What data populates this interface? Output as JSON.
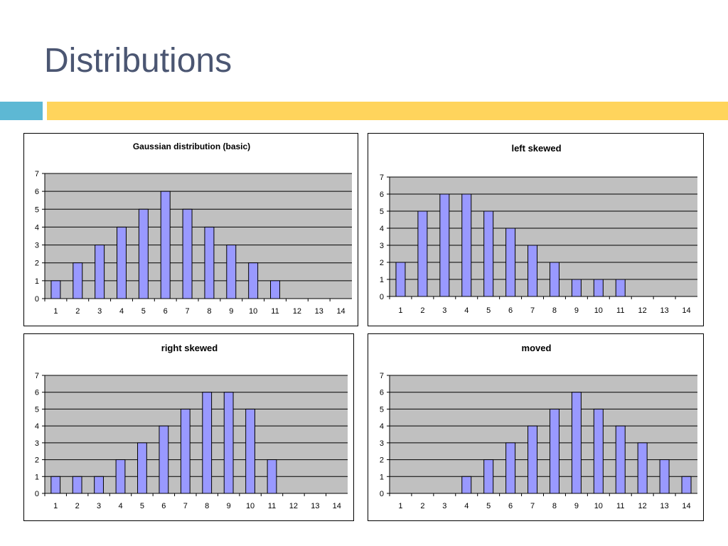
{
  "slide": {
    "title": "Distributions",
    "accent_colors": {
      "left_bar": "#5db8d4",
      "right_bar": "#ffd45c"
    }
  },
  "chart_style": {
    "plot_bg": "#c0c0c0",
    "bar_fill": "#9999ff",
    "bar_stroke": "#000000",
    "gridline_color": "#000000",
    "grid": true,
    "legend": "none"
  },
  "chart_data": [
    {
      "type": "bar",
      "title": "Gaussian distribution (basic)",
      "categories": [
        "1",
        "2",
        "3",
        "4",
        "5",
        "6",
        "7",
        "8",
        "9",
        "10",
        "11",
        "12",
        "13",
        "14"
      ],
      "values": [
        1,
        2,
        3,
        4,
        5,
        6,
        5,
        4,
        3,
        2,
        1,
        0,
        0,
        0
      ],
      "xlabel": "",
      "ylabel": "",
      "ylim": [
        0,
        7
      ],
      "yticks": [
        "0",
        "1",
        "2",
        "3",
        "4",
        "5",
        "6",
        "7"
      ]
    },
    {
      "type": "bar",
      "title": "left skewed",
      "categories": [
        "1",
        "2",
        "3",
        "4",
        "5",
        "6",
        "7",
        "8",
        "9",
        "10",
        "11",
        "12",
        "13",
        "14"
      ],
      "values": [
        2,
        5,
        6,
        6,
        5,
        4,
        3,
        2,
        1,
        1,
        1,
        0,
        0,
        0
      ],
      "xlabel": "",
      "ylabel": "",
      "ylim": [
        0,
        7
      ],
      "yticks": [
        "0",
        "1",
        "2",
        "3",
        "4",
        "5",
        "6",
        "7"
      ]
    },
    {
      "type": "bar",
      "title": "right skewed",
      "categories": [
        "1",
        "2",
        "3",
        "4",
        "5",
        "6",
        "7",
        "8",
        "9",
        "10",
        "11",
        "12",
        "13",
        "14"
      ],
      "values": [
        1,
        1,
        1,
        2,
        3,
        4,
        5,
        6,
        6,
        5,
        2,
        0,
        0,
        0
      ],
      "xlabel": "",
      "ylabel": "",
      "ylim": [
        0,
        7
      ],
      "yticks": [
        "0",
        "1",
        "2",
        "3",
        "4",
        "5",
        "6",
        "7"
      ]
    },
    {
      "type": "bar",
      "title": "moved",
      "categories": [
        "1",
        "2",
        "3",
        "4",
        "5",
        "6",
        "7",
        "8",
        "9",
        "10",
        "11",
        "12",
        "13",
        "14"
      ],
      "values": [
        0,
        0,
        0,
        1,
        2,
        3,
        4,
        5,
        6,
        5,
        4,
        3,
        2,
        1
      ],
      "xlabel": "",
      "ylabel": "",
      "ylim": [
        0,
        7
      ],
      "yticks": [
        "0",
        "1",
        "2",
        "3",
        "4",
        "5",
        "6",
        "7"
      ]
    }
  ]
}
